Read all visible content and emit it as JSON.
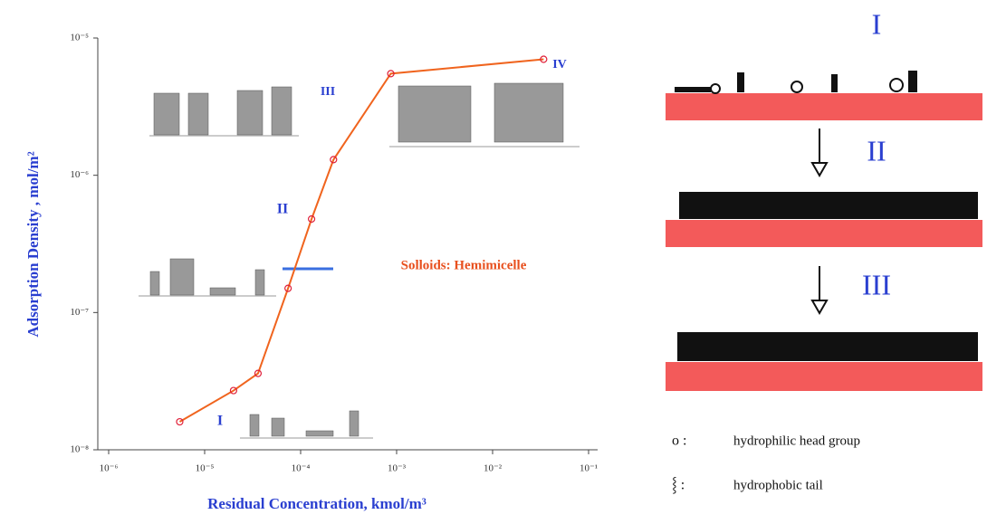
{
  "chart_data": {
    "type": "line",
    "x": [
      5.5e-06,
      2e-05,
      3.6e-05,
      7.4e-05,
      0.00013,
      0.00022,
      0.00087,
      0.034
    ],
    "values": [
      1.6e-08,
      2.7e-08,
      3.6e-08,
      1.5e-07,
      4.8e-07,
      1.3e-06,
      5.5e-06,
      7e-06
    ],
    "color": "#f0641e",
    "marker_color": "#e0203a",
    "xlabel": "Residual Concentration, kmol/m³",
    "ylabel": "Adsorption Density , mol/m²",
    "xscale": "log",
    "yscale": "log",
    "xlim": [
      1e-06,
      0.1
    ],
    "ylim": [
      1e-08,
      1e-05
    ],
    "xticks": [
      {
        "value": 1e-06,
        "label": "10⁻⁶"
      },
      {
        "value": 1e-05,
        "label": "10⁻⁵"
      },
      {
        "value": 0.0001,
        "label": "10⁻⁴"
      },
      {
        "value": 0.001,
        "label": "10⁻³"
      },
      {
        "value": 0.01,
        "label": "10⁻²"
      },
      {
        "value": 0.1,
        "label": "10⁻¹"
      }
    ],
    "yticks": [
      {
        "value": 1e-08,
        "label": "10⁻⁸"
      },
      {
        "value": 1e-07,
        "label": "10⁻⁷"
      },
      {
        "value": 1e-06,
        "label": "10⁻⁶"
      },
      {
        "value": 1e-05,
        "label": "10⁻⁵"
      }
    ],
    "annotations": [
      "I",
      "II",
      "III",
      "IV",
      "Solloids: Hemimicelle"
    ]
  },
  "diagram": {
    "stages": [
      "I",
      "II",
      "III"
    ],
    "legend": [
      {
        "symbol": "o :",
        "text": "hydrophilic head group"
      },
      {
        "symbol": "⸾ :",
        "text": "hydrophobic tail"
      }
    ]
  }
}
